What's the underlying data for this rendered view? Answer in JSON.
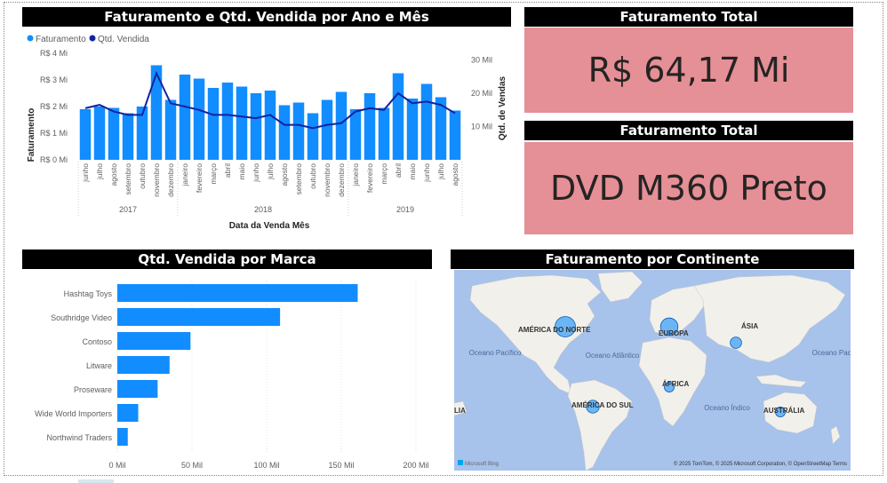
{
  "combo_chart": {
    "title": "Faturamento e Qtd. Vendida por Ano e Mês",
    "legend": [
      "Faturamento",
      "Qtd. Vendida"
    ],
    "ylabel_left": "Faturamento",
    "ylabel_right": "Qtd. de Vendas",
    "xlabel": "Data da Venda Mês",
    "left_ticks": [
      "R$ 0 Mi",
      "R$ 1 Mi",
      "R$ 2 Mi",
      "R$ 3 Mi",
      "R$ 4 Mi"
    ],
    "right_ticks": [
      "10 Mil",
      "20 Mil",
      "30 Mil"
    ],
    "years": [
      "2017",
      "2018",
      "2019"
    ],
    "colors": {
      "bar": "#118dff",
      "line": "#12239e"
    }
  },
  "kpi1": {
    "title": "Faturamento Total",
    "value": "R$ 64,17 Mi"
  },
  "kpi2": {
    "title": "Faturamento Total",
    "value": "DVD M360 Preto"
  },
  "bar_chart": {
    "title": "Qtd. Vendida por Marca",
    "x_ticks": [
      "0 Mil",
      "50 Mil",
      "100 Mil",
      "150 Mil",
      "200 Mil"
    ],
    "color": "#118dff"
  },
  "map": {
    "title": "Faturamento por Continente",
    "labels": {
      "north_america": "AMÉRICA DO NORTE",
      "europe": "EUROPA",
      "asia": "ÁSIA",
      "africa": "ÁFRICA",
      "south_america": "AMÉRICA DO SUL",
      "australia": "AUSTRÁLIA",
      "oceania": "LIA",
      "pacific_left": "Oceano Pacífico",
      "atlantic": "Oceano Atlântico",
      "indian": "Oceano Índico",
      "pacific_right": "Oceano Pacífico"
    },
    "attribution": "© 2025 TomTom, © 2025 Microsoft Corporation, © OpenStreetMap  Terms",
    "bing": "Microsoft Bing"
  },
  "chart_data": [
    {
      "type": "bar",
      "title": "Faturamento e Qtd. Vendida por Ano e Mês",
      "xlabel": "Data da Venda Mês",
      "ylabel": "Faturamento",
      "ylim": [
        0,
        4
      ],
      "y2label": "Qtd. de Vendas",
      "y2lim": [
        0,
        32
      ],
      "categories": [
        "junho",
        "julho",
        "agosto",
        "setembro",
        "outubro",
        "novembro",
        "dezembro",
        "janeiro",
        "fevereiro",
        "março",
        "abril",
        "maio",
        "junho",
        "julho",
        "agosto",
        "setembro",
        "outubro",
        "novembro",
        "dezembro",
        "janeiro",
        "fevereiro",
        "março",
        "abril",
        "maio",
        "junho",
        "julho",
        "agosto"
      ],
      "series": [
        {
          "name": "Faturamento",
          "type": "bar",
          "values": [
            1.9,
            2.0,
            1.95,
            1.75,
            2.0,
            3.55,
            2.25,
            3.2,
            3.05,
            2.7,
            2.9,
            2.75,
            2.5,
            2.6,
            2.05,
            2.15,
            1.75,
            2.25,
            2.55,
            1.9,
            2.5,
            1.95,
            3.25,
            2.3,
            2.85,
            2.35,
            1.85
          ]
        },
        {
          "name": "Qtd. Vendida",
          "type": "line",
          "axis": "right",
          "values": [
            15.5,
            16.5,
            14.5,
            13.5,
            13.5,
            26.0,
            17.0,
            16.0,
            15.0,
            13.5,
            13.5,
            13.0,
            12.5,
            13.5,
            10.5,
            10.5,
            9.5,
            10.5,
            11.0,
            14.5,
            15.5,
            15.0,
            20.0,
            17.0,
            17.5,
            16.5,
            14.0
          ]
        }
      ],
      "x_groups": [
        {
          "label": "2017",
          "months": [
            "junho",
            "julho",
            "agosto",
            "setembro",
            "outubro",
            "novembro",
            "dezembro"
          ]
        },
        {
          "label": "2018",
          "months": [
            "janeiro",
            "fevereiro",
            "março",
            "abril",
            "maio",
            "junho",
            "julho",
            "agosto",
            "setembro",
            "outubro",
            "novembro",
            "dezembro"
          ]
        },
        {
          "label": "2019",
          "months": [
            "janeiro",
            "fevereiro",
            "março",
            "abril",
            "maio",
            "junho",
            "julho",
            "agosto"
          ]
        }
      ]
    },
    {
      "type": "bar",
      "orientation": "horizontal",
      "title": "Qtd. Vendida por Marca",
      "categories": [
        "Hashtag Toys",
        "Southridge Video",
        "Contoso",
        "Litware",
        "Proseware",
        "Wide World Importers",
        "Northwind Traders"
      ],
      "values": [
        161,
        109,
        49,
        35,
        27,
        14,
        7
      ],
      "xlim": [
        0,
        200
      ]
    },
    {
      "type": "map",
      "title": "Faturamento por Continente",
      "categories": [
        "América do Norte",
        "Europa",
        "Ásia",
        "África",
        "América do Sul",
        "Austrália"
      ],
      "values": [
        10,
        8,
        4,
        3,
        5,
        3
      ]
    }
  ]
}
